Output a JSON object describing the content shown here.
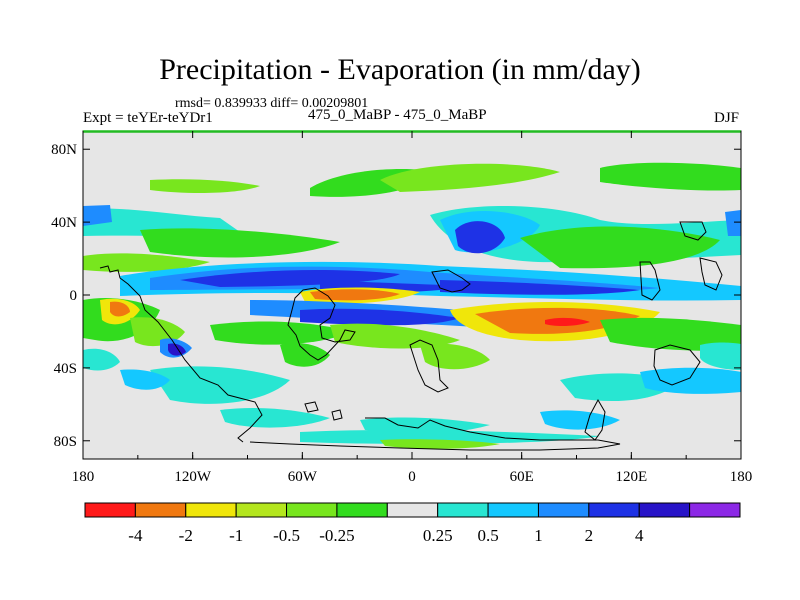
{
  "title": "Precipitation - Evaporation (in mm/day)",
  "stats_text": "rmsd= 0.839933 diff= 0.00209801",
  "left_label": "Expt = teYEr-teYDr1",
  "center_label": "475_0_MaBP - 475_0_MaBP",
  "right_label": "DJF",
  "colors": {
    "background": "#e6e6e6",
    "border_top_accent": "#22bb22",
    "coastline": "#000000"
  },
  "x_ticks": [
    "180",
    "120W",
    "60W",
    "0",
    "60E",
    "120E",
    "180"
  ],
  "y_ticks": [
    "80N",
    "40N",
    "0",
    "40S",
    "80S"
  ],
  "colorbar": {
    "colors": [
      "#ff1a1a",
      "#f07810",
      "#f0e60a",
      "#b4e61e",
      "#78e61e",
      "#32dc1e",
      "#e6e6e6",
      "#28e6d2",
      "#14c8ff",
      "#1e8cff",
      "#1e32e6",
      "#2814c8",
      "#8c28e6"
    ],
    "labels": [
      "-4",
      "-2",
      "-1",
      "-0.5",
      "-0.25",
      "0.25",
      "0.5",
      "1",
      "2",
      "4"
    ]
  }
}
